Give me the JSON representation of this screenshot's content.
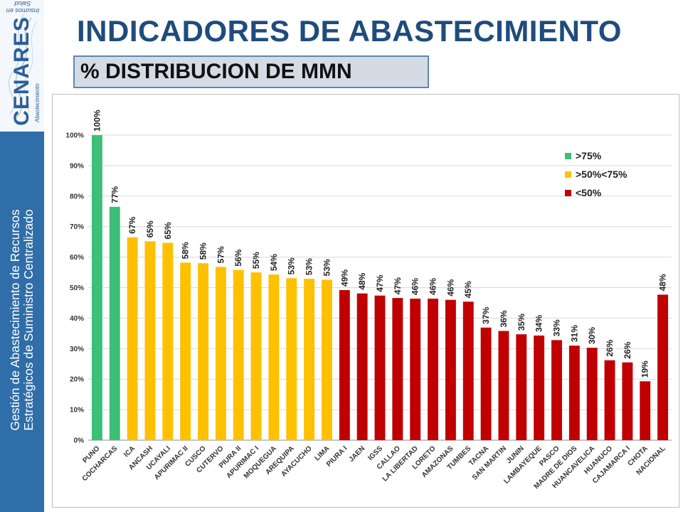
{
  "logo": {
    "name": "CENARES",
    "tagline_top": "Insumos en Salud",
    "tagline_bottom": "Abastecimiento"
  },
  "sidebar": {
    "line1": "Gestión de Abastecimiento de Recursos",
    "line2": "Estratégicos de Suministro Centralizado"
  },
  "header": {
    "title": "INDICADORES DE ABASTECIMIENTO",
    "subtitle": "% DISTRIBUCION DE MMN"
  },
  "colors": {
    "green": "#3cbf78",
    "yellow": "#ffc000",
    "red": "#c00000",
    "title": "#1f4c7c",
    "sidebar": "#2f6ea8"
  },
  "chart_data": {
    "type": "bar",
    "title": "",
    "xlabel": "",
    "ylabel": "",
    "ylim": [
      0,
      100
    ],
    "y_ticks": [
      "0%",
      "10%",
      "20%",
      "30%",
      "40%",
      "50%",
      "60%",
      "70%",
      "80%",
      "90%",
      "100%"
    ],
    "grid": true,
    "legend_position": "top-right",
    "legend": [
      {
        "label": ">75%",
        "color": "#3cbf78"
      },
      {
        "label": ">50%<75%",
        "color": "#ffc000"
      },
      {
        "label": "<50%",
        "color": "#c00000"
      }
    ],
    "categories": [
      "PUNO",
      "COCHARCAS",
      "ICA",
      "ANCASH",
      "UCAYALI",
      "APURIMAC II",
      "CUSCO",
      "CUTERVO",
      "PIURA II",
      "APURIMAC I",
      "MOQUEGUA",
      "AREQUIPA",
      "AYACUCHO",
      "LIMA",
      "PIURA I",
      "JAEN",
      "IGSS",
      "CALLAO",
      "LA LIBERTAD",
      "LORETO",
      "AMAZONAS",
      "TUMBES",
      "TACNA",
      "SAN MARTIN",
      "JUNIN",
      "LAMBAYEQUE",
      "PASCO",
      "MADRE DE DIOS",
      "HUANCAVELICA",
      "HUANUCO",
      "CAJAMARCA I",
      "CHOTA",
      "NACIONAL"
    ],
    "values": [
      100,
      76.5,
      66.5,
      65.2,
      64.7,
      58.2,
      58.0,
      56.8,
      55.8,
      55.0,
      54.3,
      53.1,
      52.9,
      52.6,
      49.2,
      48.1,
      47.4,
      46.6,
      46.4,
      46.4,
      46.0,
      45.4,
      36.9,
      35.8,
      34.7,
      34.3,
      32.8,
      31.0,
      30.3,
      26.2,
      25.5,
      19.3,
      47.7
    ],
    "data_labels": [
      "100%",
      "77%",
      "67%",
      "65%",
      "65%",
      "58%",
      "58%",
      "57%",
      "56%",
      "55%",
      "54%",
      "53%",
      "53%",
      "53%",
      "49%",
      "48%",
      "47%",
      "47%",
      "46%",
      "46%",
      "46%",
      "45%",
      "37%",
      "36%",
      "35%",
      "34%",
      "33%",
      "31%",
      "30%",
      "26%",
      "26%",
      "19%",
      "48%"
    ],
    "bar_groups": [
      "green",
      "green",
      "yellow",
      "yellow",
      "yellow",
      "yellow",
      "yellow",
      "yellow",
      "yellow",
      "yellow",
      "yellow",
      "yellow",
      "yellow",
      "yellow",
      "red",
      "red",
      "red",
      "red",
      "red",
      "red",
      "red",
      "red",
      "red",
      "red",
      "red",
      "red",
      "red",
      "red",
      "red",
      "red",
      "red",
      "red",
      "red"
    ]
  }
}
